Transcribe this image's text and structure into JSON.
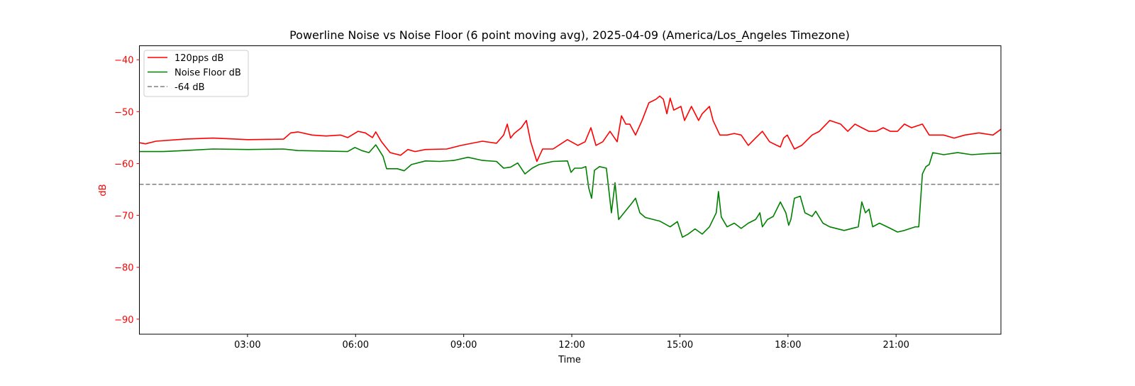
{
  "chart_data": {
    "type": "line",
    "title": "Powerline Noise vs Noise Floor (6 point moving avg), 2025-04-09 (America/Los_Angeles Timezone)",
    "xlabel": "Time",
    "ylabel": "dB",
    "x_units": "hours since 00:00",
    "xlim": [
      0,
      23.91
    ],
    "ylim": [
      -92.9,
      -37.3
    ],
    "xticks": [
      3,
      6,
      9,
      12,
      15,
      18,
      21
    ],
    "xtick_labels": [
      "03:00",
      "06:00",
      "09:00",
      "12:00",
      "15:00",
      "18:00",
      "21:00"
    ],
    "yticks": [
      -40,
      -50,
      -60,
      -70,
      -80,
      -90
    ],
    "ytick_labels": [
      "−40",
      "−50",
      "−60",
      "−70",
      "−80",
      "−90"
    ],
    "grid": false,
    "legend_position": "top-left",
    "colors": {
      "axis_label": "#ff0000",
      "ref": "#808080"
    },
    "series": [
      {
        "name": "120pps dB",
        "color": "#ff0000",
        "style": "solid",
        "x": [
          0,
          0.17,
          0.46,
          1.25,
          2.04,
          3.02,
          4.0,
          4.2,
          4.4,
          4.79,
          5.18,
          5.58,
          5.78,
          6.07,
          6.27,
          6.47,
          6.56,
          6.72,
          6.96,
          7.25,
          7.45,
          7.65,
          7.94,
          8.53,
          8.93,
          9.52,
          9.91,
          10.11,
          10.21,
          10.3,
          10.4,
          10.6,
          10.74,
          10.86,
          11.03,
          11.19,
          11.48,
          11.88,
          12.17,
          12.37,
          12.53,
          12.67,
          12.86,
          13.06,
          13.26,
          13.38,
          13.5,
          13.61,
          13.77,
          13.95,
          14.14,
          14.34,
          14.44,
          14.54,
          14.64,
          14.73,
          14.83,
          15.03,
          15.13,
          15.32,
          15.52,
          15.62,
          15.82,
          15.92,
          16.11,
          16.31,
          16.51,
          16.7,
          16.9,
          17.1,
          17.29,
          17.49,
          17.69,
          17.79,
          17.88,
          17.98,
          18.18,
          18.38,
          18.67,
          18.87,
          19.16,
          19.46,
          19.66,
          19.86,
          20.05,
          20.25,
          20.45,
          20.64,
          20.84,
          21.04,
          21.23,
          21.43,
          21.73,
          21.92,
          22.32,
          22.61,
          22.91,
          23.3,
          23.69,
          23.91
        ],
        "y": [
          -56.0,
          -56.2,
          -55.7,
          -55.3,
          -55.1,
          -55.4,
          -55.3,
          -54.1,
          -53.9,
          -54.5,
          -54.7,
          -54.5,
          -55.0,
          -53.8,
          -54.1,
          -55.0,
          -53.9,
          -55.8,
          -57.9,
          -58.4,
          -57.3,
          -57.7,
          -57.3,
          -57.2,
          -56.5,
          -55.7,
          -56.1,
          -54.5,
          -52.4,
          -55.1,
          -54.2,
          -53.1,
          -51.7,
          -55.8,
          -59.6,
          -57.2,
          -57.2,
          -55.4,
          -56.5,
          -55.8,
          -53.1,
          -56.5,
          -55.8,
          -53.8,
          -55.8,
          -50.8,
          -52.4,
          -52.4,
          -54.5,
          -51.7,
          -48.3,
          -47.6,
          -47.0,
          -47.6,
          -50.4,
          -47.4,
          -49.7,
          -49.0,
          -51.7,
          -49.0,
          -51.7,
          -50.4,
          -49.0,
          -51.7,
          -54.5,
          -54.5,
          -54.2,
          -54.5,
          -56.5,
          -55.1,
          -53.8,
          -55.8,
          -56.5,
          -56.8,
          -55.1,
          -54.5,
          -57.2,
          -56.5,
          -54.5,
          -53.8,
          -51.7,
          -52.4,
          -53.8,
          -52.4,
          -53.1,
          -53.8,
          -53.8,
          -53.1,
          -53.8,
          -53.8,
          -52.4,
          -53.1,
          -52.4,
          -54.5,
          -54.5,
          -55.1,
          -54.5,
          -54.1,
          -54.5,
          -53.4
        ]
      },
      {
        "name": "Noise Floor dB",
        "color": "#008000",
        "style": "solid",
        "x": [
          0,
          0.66,
          1.25,
          2.04,
          3.02,
          4.0,
          4.4,
          5.18,
          5.78,
          5.98,
          6.17,
          6.37,
          6.56,
          6.76,
          6.86,
          7.16,
          7.35,
          7.55,
          7.94,
          8.33,
          8.73,
          9.12,
          9.52,
          9.91,
          10.11,
          10.3,
          10.5,
          10.7,
          10.9,
          11.09,
          11.48,
          11.88,
          11.98,
          12.08,
          12.27,
          12.39,
          12.47,
          12.55,
          12.63,
          12.77,
          12.96,
          13.1,
          13.2,
          13.3,
          13.45,
          13.65,
          13.77,
          13.89,
          14.04,
          14.44,
          14.73,
          14.93,
          15.07,
          15.23,
          15.42,
          15.62,
          15.82,
          16.01,
          16.07,
          16.15,
          16.31,
          16.51,
          16.7,
          16.9,
          17.1,
          17.22,
          17.29,
          17.43,
          17.59,
          17.79,
          17.94,
          18.02,
          18.08,
          18.18,
          18.34,
          18.47,
          18.67,
          18.77,
          18.97,
          19.16,
          19.56,
          19.95,
          20.05,
          20.15,
          20.25,
          20.35,
          20.54,
          20.84,
          21.04,
          21.23,
          21.53,
          21.63,
          21.73,
          21.83,
          21.92,
          22.02,
          22.32,
          22.71,
          23.1,
          23.5,
          23.91
        ],
        "y": [
          -57.7,
          -57.7,
          -57.5,
          -57.2,
          -57.3,
          -57.2,
          -57.5,
          -57.6,
          -57.7,
          -56.9,
          -57.5,
          -57.9,
          -56.4,
          -58.6,
          -61.0,
          -61.0,
          -61.4,
          -60.2,
          -59.5,
          -59.6,
          -59.4,
          -58.8,
          -59.4,
          -59.6,
          -60.9,
          -60.7,
          -59.9,
          -62.0,
          -60.9,
          -60.2,
          -59.6,
          -59.5,
          -61.7,
          -60.9,
          -60.9,
          -60.6,
          -64.7,
          -66.7,
          -61.3,
          -60.6,
          -60.9,
          -69.5,
          -63.7,
          -70.8,
          -69.5,
          -67.8,
          -66.7,
          -69.5,
          -70.4,
          -71.1,
          -72.2,
          -71.2,
          -74.2,
          -73.6,
          -72.6,
          -73.6,
          -72.2,
          -69.5,
          -65.4,
          -70.3,
          -72.2,
          -71.5,
          -72.5,
          -71.5,
          -70.8,
          -69.5,
          -72.2,
          -70.8,
          -70.2,
          -67.4,
          -69.5,
          -71.9,
          -70.8,
          -66.7,
          -66.3,
          -69.5,
          -70.2,
          -69.2,
          -71.5,
          -72.2,
          -72.9,
          -72.2,
          -67.4,
          -69.5,
          -68.8,
          -72.2,
          -71.5,
          -72.5,
          -73.2,
          -72.9,
          -72.2,
          -72.2,
          -62.0,
          -60.6,
          -60.2,
          -57.9,
          -58.3,
          -57.9,
          -58.3,
          -58.1,
          -58.0
        ]
      },
      {
        "name": "-64 dB",
        "color": "#808080",
        "style": "dashed",
        "x": [
          0,
          23.91
        ],
        "y": [
          -64,
          -64
        ]
      }
    ]
  }
}
